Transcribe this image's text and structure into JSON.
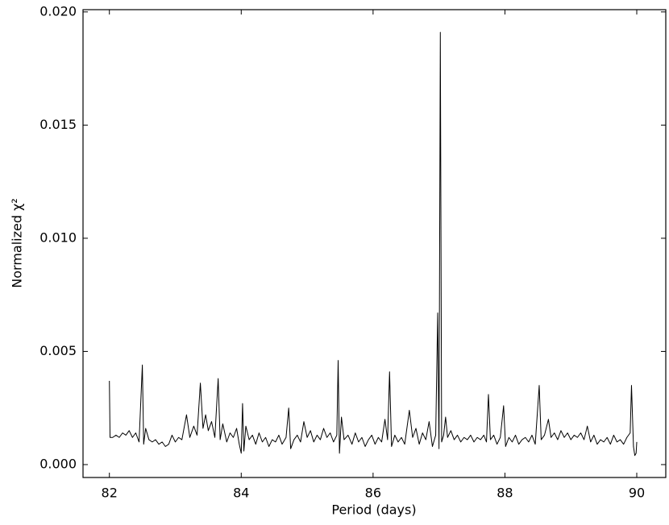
{
  "chart_data": {
    "type": "line",
    "xlabel": "Period (days)",
    "ylabel": "Normalized χ²",
    "color": "#000000",
    "xlim": [
      81.6,
      90.44
    ],
    "ylim": [
      -0.00057,
      0.0201
    ],
    "xticks": [
      82,
      84,
      86,
      88,
      90
    ],
    "yticks": [
      {
        "value": 0,
        "label": "0.000"
      },
      0.005,
      {
        "value": 0.01,
        "label": "0.010"
      },
      0.015,
      {
        "value": 0.02,
        "label": "0.020"
      }
    ],
    "tick_direction": "in",
    "mirror_ticks": true,
    "x": [
      82.0,
      82.01,
      82.05,
      82.1,
      82.15,
      82.2,
      82.25,
      82.3,
      82.35,
      82.4,
      82.45,
      82.5,
      82.52,
      82.55,
      82.6,
      82.65,
      82.7,
      82.75,
      82.8,
      82.85,
      82.9,
      82.95,
      83.0,
      83.05,
      83.1,
      83.17,
      83.22,
      83.28,
      83.33,
      83.38,
      83.42,
      83.46,
      83.5,
      83.55,
      83.6,
      83.65,
      83.68,
      83.72,
      83.78,
      83.83,
      83.88,
      83.93,
      83.97,
      84.0,
      84.02,
      84.04,
      84.07,
      84.12,
      84.17,
      84.22,
      84.27,
      84.32,
      84.37,
      84.42,
      84.47,
      84.52,
      84.57,
      84.62,
      84.68,
      84.72,
      84.75,
      84.8,
      84.85,
      84.9,
      84.95,
      85.0,
      85.05,
      85.1,
      85.15,
      85.2,
      85.25,
      85.3,
      85.35,
      85.4,
      85.45,
      85.47,
      85.49,
      85.52,
      85.56,
      85.62,
      85.68,
      85.73,
      85.78,
      85.83,
      85.88,
      85.93,
      85.98,
      86.03,
      86.08,
      86.13,
      86.18,
      86.22,
      86.25,
      86.28,
      86.33,
      86.38,
      86.43,
      86.48,
      86.55,
      86.6,
      86.65,
      86.7,
      86.75,
      86.8,
      86.85,
      86.9,
      86.95,
      86.98,
      87.0,
      87.02,
      87.04,
      87.07,
      87.1,
      87.13,
      87.18,
      87.23,
      87.28,
      87.33,
      87.38,
      87.43,
      87.48,
      87.53,
      87.58,
      87.63,
      87.68,
      87.72,
      87.75,
      87.78,
      87.83,
      87.88,
      87.93,
      87.98,
      88.01,
      88.06,
      88.11,
      88.16,
      88.21,
      88.26,
      88.31,
      88.36,
      88.41,
      88.46,
      88.52,
      88.55,
      88.6,
      88.66,
      88.7,
      88.75,
      88.8,
      88.85,
      88.9,
      88.95,
      89.0,
      89.05,
      89.1,
      89.15,
      89.2,
      89.25,
      89.3,
      89.35,
      89.4,
      89.45,
      89.5,
      89.55,
      89.6,
      89.65,
      89.7,
      89.75,
      89.8,
      89.85,
      89.9,
      89.92,
      89.95,
      89.97,
      89.99,
      90.0
    ],
    "values": [
      0.0037,
      0.0012,
      0.0012,
      0.0013,
      0.0012,
      0.0014,
      0.0013,
      0.0015,
      0.0012,
      0.0014,
      0.001,
      0.0044,
      0.0009,
      0.0016,
      0.0011,
      0.001,
      0.0011,
      0.0009,
      0.001,
      0.0008,
      0.0009,
      0.0013,
      0.001,
      0.0012,
      0.0011,
      0.0022,
      0.0012,
      0.0017,
      0.0013,
      0.0036,
      0.0016,
      0.0022,
      0.0015,
      0.0019,
      0.0012,
      0.0038,
      0.0011,
      0.0018,
      0.001,
      0.0014,
      0.0012,
      0.0016,
      0.0009,
      0.0005,
      0.0027,
      0.0006,
      0.0017,
      0.0011,
      0.0013,
      0.0009,
      0.0014,
      0.001,
      0.0012,
      0.0008,
      0.0011,
      0.001,
      0.0013,
      0.0009,
      0.0012,
      0.0025,
      0.0007,
      0.0011,
      0.0013,
      0.001,
      0.0019,
      0.0012,
      0.0015,
      0.001,
      0.0013,
      0.0011,
      0.0016,
      0.0012,
      0.0014,
      0.001,
      0.0013,
      0.0046,
      0.0005,
      0.0021,
      0.0011,
      0.0013,
      0.0009,
      0.0014,
      0.001,
      0.0012,
      0.0008,
      0.0011,
      0.0013,
      0.0009,
      0.0012,
      0.001,
      0.002,
      0.0011,
      0.0041,
      0.0008,
      0.0013,
      0.001,
      0.0012,
      0.0009,
      0.0024,
      0.0012,
      0.0016,
      0.0009,
      0.0014,
      0.0011,
      0.0019,
      0.0008,
      0.0013,
      0.0067,
      0.0007,
      0.0191,
      0.001,
      0.0013,
      0.0021,
      0.0012,
      0.0015,
      0.0011,
      0.0013,
      0.001,
      0.0012,
      0.0011,
      0.0013,
      0.001,
      0.0012,
      0.0011,
      0.0013,
      0.001,
      0.0031,
      0.0011,
      0.0013,
      0.0009,
      0.0012,
      0.0026,
      0.0008,
      0.0012,
      0.001,
      0.0013,
      0.0009,
      0.0011,
      0.0012,
      0.001,
      0.0013,
      0.0009,
      0.0035,
      0.0011,
      0.0013,
      0.002,
      0.0012,
      0.0014,
      0.0011,
      0.0015,
      0.0012,
      0.0014,
      0.0011,
      0.0013,
      0.0012,
      0.0014,
      0.0011,
      0.0017,
      0.001,
      0.0013,
      0.0009,
      0.0011,
      0.001,
      0.0012,
      0.0009,
      0.0013,
      0.001,
      0.0011,
      0.0009,
      0.0012,
      0.0014,
      0.0035,
      0.0008,
      0.0004,
      0.0005,
      0.001
    ]
  }
}
